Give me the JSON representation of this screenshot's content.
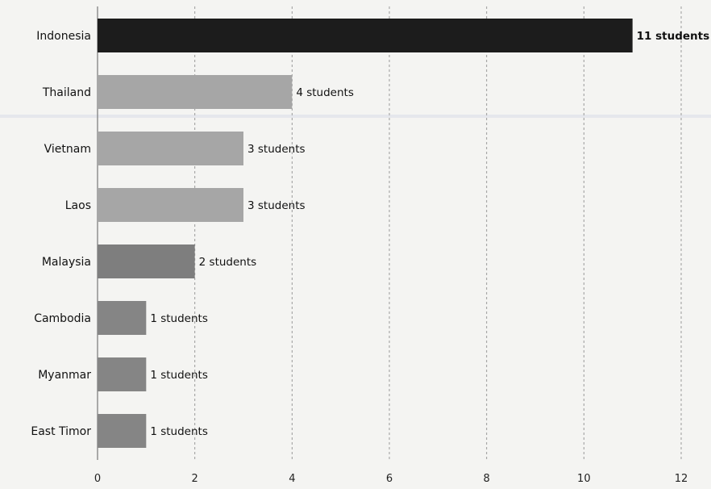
{
  "chart_data": {
    "type": "bar",
    "orientation": "horizontal",
    "title": "",
    "xlabel": "",
    "ylabel": "",
    "xlim": [
      0,
      12
    ],
    "x_ticks": [
      "0",
      "2",
      "4",
      "6",
      "8",
      "10",
      "12"
    ],
    "grid": "vertical dashed",
    "categories": [
      "Indonesia",
      "Thailand",
      "Vietnam",
      "Laos",
      "Malaysia",
      "Cambodia",
      "Myanmar",
      "East Timor"
    ],
    "values": [
      11,
      4,
      3,
      3,
      2,
      1,
      1,
      1
    ],
    "data_labels": [
      "11 students",
      "4 students",
      "3 students",
      "3 students",
      "2 students",
      "1 students",
      "1 students",
      "1 students"
    ],
    "bar_colors": [
      "#1c1c1c",
      "#a6a6a6",
      "#a6a6a6",
      "#a6a6a6",
      "#7e7e7e",
      "#858585",
      "#858585",
      "#858585"
    ],
    "label_weight": [
      "bold",
      "normal",
      "normal",
      "normal",
      "normal",
      "normal",
      "normal",
      "normal"
    ]
  }
}
